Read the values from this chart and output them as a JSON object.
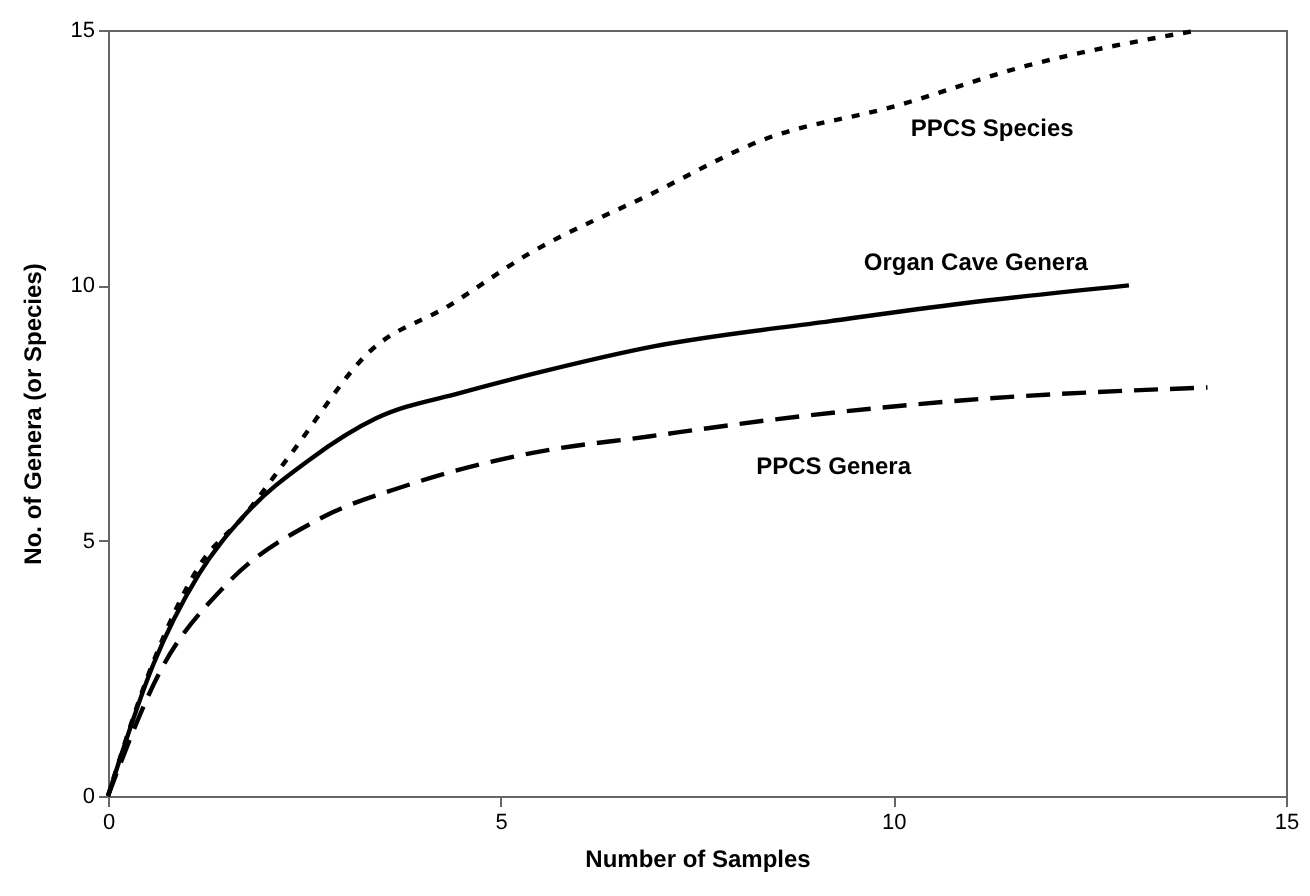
{
  "chart_data": {
    "type": "line",
    "xlabel": "Number of Samples",
    "ylabel": "No. of Genera (or Species)",
    "xlim": [
      0,
      15
    ],
    "ylim": [
      0,
      15
    ],
    "xticks": [
      0,
      5,
      10,
      15
    ],
    "yticks": [
      0,
      5,
      10,
      15
    ],
    "grid": false,
    "legend": false,
    "marker": "none",
    "series": [
      {
        "name": "PPCS Species",
        "color": "#000000",
        "line_style": "dotted",
        "x": [
          0,
          0.57,
          1.16,
          1.74,
          2.33,
          3.33,
          4.34,
          5.34,
          6.93,
          8.36,
          10.0,
          11.7,
          13.9
        ],
        "values": [
          0,
          2.6,
          4.5,
          5.5,
          6.7,
          8.7,
          9.6,
          10.6,
          11.8,
          12.86,
          13.5,
          14.3,
          15.0
        ]
      },
      {
        "name": "Organ Cave Genera",
        "color": "#000000",
        "line_style": "solid",
        "x": [
          0,
          0.57,
          1.16,
          1.74,
          2.58,
          3.42,
          4.5,
          5.5,
          6.93,
          9.2,
          10.9,
          13.0
        ],
        "values": [
          0,
          2.55,
          4.35,
          5.5,
          6.6,
          7.4,
          7.9,
          8.3,
          8.8,
          9.3,
          9.65,
          10.0
        ]
      },
      {
        "name": "PPCS Genera",
        "color": "#000000",
        "line_style": "dashed",
        "x": [
          0,
          0.65,
          1.48,
          2.66,
          3.84,
          5.34,
          6.93,
          8.36,
          10.9,
          14.0
        ],
        "values": [
          0,
          2.4,
          4.1,
          5.4,
          6.1,
          6.7,
          7.05,
          7.35,
          7.75,
          8.0
        ]
      }
    ]
  }
}
